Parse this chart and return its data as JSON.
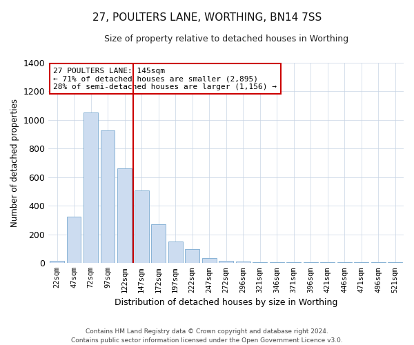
{
  "title": "27, POULTERS LANE, WORTHING, BN14 7SS",
  "subtitle": "Size of property relative to detached houses in Worthing",
  "xlabel": "Distribution of detached houses by size in Worthing",
  "ylabel": "Number of detached properties",
  "categories": [
    "22sqm",
    "47sqm",
    "72sqm",
    "97sqm",
    "122sqm",
    "147sqm",
    "172sqm",
    "197sqm",
    "222sqm",
    "247sqm",
    "272sqm",
    "296sqm",
    "321sqm",
    "346sqm",
    "371sqm",
    "396sqm",
    "421sqm",
    "446sqm",
    "471sqm",
    "496sqm",
    "521sqm"
  ],
  "values": [
    15,
    325,
    1050,
    925,
    660,
    505,
    270,
    150,
    100,
    35,
    18,
    10,
    5,
    5,
    5,
    5,
    5,
    5,
    5,
    5,
    5
  ],
  "bar_color": "#ccdcf0",
  "bar_edge_color": "#7aaad0",
  "vline_x": 4.5,
  "vline_color": "#cc0000",
  "annotation_text": "27 POULTERS LANE: 145sqm\n← 71% of detached houses are smaller (2,895)\n28% of semi-detached houses are larger (1,156) →",
  "annotation_box_color": "#cc0000",
  "annotation_text_color": "#000000",
  "ylim": [
    0,
    1400
  ],
  "yticks": [
    0,
    200,
    400,
    600,
    800,
    1000,
    1200,
    1400
  ],
  "footer_text": "Contains HM Land Registry data © Crown copyright and database right 2024.\nContains public sector information licensed under the Open Government Licence v3.0.",
  "background_color": "#ffffff",
  "grid_color": "#c8d4e4"
}
